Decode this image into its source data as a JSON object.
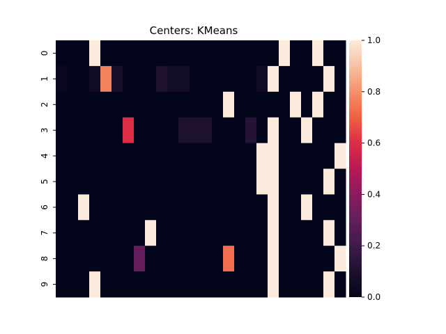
{
  "chart_data": {
    "type": "heatmap",
    "title": "Centers: KMeans",
    "xlabel": "",
    "ylabel": "",
    "y_tick_labels": [
      "0",
      "1",
      "2",
      "3",
      "4",
      "5",
      "6",
      "7",
      "8",
      "9"
    ],
    "x_tick_labels": [],
    "n_columns": 26,
    "colorbar": {
      "range": [
        0.0,
        1.0
      ],
      "ticks": [
        "0.0",
        "0.2",
        "0.4",
        "0.6",
        "0.8",
        "1.0"
      ],
      "placement": "right"
    },
    "colormap_stops": [
      {
        "v": 0.0,
        "c": "#03051a"
      },
      {
        "v": 0.1,
        "c": "#1e112e"
      },
      {
        "v": 0.2,
        "c": "#3e1b4a"
      },
      {
        "v": 0.3,
        "c": "#631e5b"
      },
      {
        "v": 0.4,
        "c": "#8b1b5e"
      },
      {
        "v": 0.5,
        "c": "#b71a55"
      },
      {
        "v": 0.6,
        "c": "#dd2c45"
      },
      {
        "v": 0.7,
        "c": "#f06043"
      },
      {
        "v": 0.8,
        "c": "#f6906a"
      },
      {
        "v": 0.9,
        "c": "#f8c0a4"
      },
      {
        "v": 1.0,
        "c": "#faebdd"
      }
    ],
    "values": [
      [
        0,
        0,
        0,
        1,
        0,
        0,
        0,
        0,
        0,
        0,
        0,
        0,
        0,
        0,
        0,
        0,
        0,
        0,
        0,
        0,
        1,
        0,
        0,
        1,
        0,
        0
      ],
      [
        0.03,
        0,
        0,
        0.05,
        0.77,
        0.08,
        0,
        0,
        0,
        0.1,
        0.06,
        0.06,
        0,
        0,
        0,
        0,
        0,
        0,
        0.05,
        1,
        0,
        0,
        0,
        0,
        1,
        0
      ],
      [
        0,
        0,
        0,
        0,
        0,
        0,
        0,
        0,
        0,
        0,
        0,
        0,
        0,
        0,
        0,
        1,
        0,
        0,
        0,
        0,
        0,
        1,
        0,
        1,
        0,
        0
      ],
      [
        0,
        0,
        0,
        0,
        0,
        0,
        0.6,
        0,
        0,
        0,
        0,
        0.1,
        0.1,
        0.1,
        0,
        0,
        0,
        0.12,
        0,
        1,
        0,
        0,
        1,
        0,
        0,
        0
      ],
      [
        0,
        0,
        0,
        0,
        0,
        0,
        0,
        0,
        0,
        0,
        0,
        0,
        0,
        0,
        0,
        0,
        0,
        0,
        1,
        1,
        0,
        0,
        0,
        0,
        0,
        1
      ],
      [
        0,
        0,
        0,
        0,
        0,
        0,
        0,
        0,
        0,
        0,
        0,
        0,
        0,
        0,
        0,
        0,
        0,
        0,
        1,
        1,
        0,
        0,
        0,
        0,
        1,
        0
      ],
      [
        0,
        0,
        1,
        0,
        0,
        0,
        0,
        0,
        0,
        0,
        0,
        0,
        0,
        0,
        0,
        0,
        0,
        0,
        0,
        1,
        0,
        0,
        1,
        0,
        0,
        0
      ],
      [
        0,
        0,
        0,
        0,
        0,
        0,
        0,
        0,
        1,
        0,
        0,
        0,
        0,
        0,
        0,
        0,
        0,
        0,
        0,
        1,
        0,
        0,
        0,
        0,
        1,
        0
      ],
      [
        0,
        0,
        0,
        0,
        0,
        0,
        0,
        0.3,
        0,
        0,
        0,
        0,
        0,
        0,
        0,
        0.73,
        0,
        0,
        0,
        1,
        0,
        0,
        0,
        0,
        0,
        1
      ],
      [
        0,
        0,
        0,
        1,
        0,
        0,
        0,
        0,
        0,
        0,
        0,
        0,
        0,
        0,
        0,
        0,
        0,
        0,
        0,
        1,
        0,
        0,
        0,
        0,
        1,
        0
      ]
    ]
  }
}
